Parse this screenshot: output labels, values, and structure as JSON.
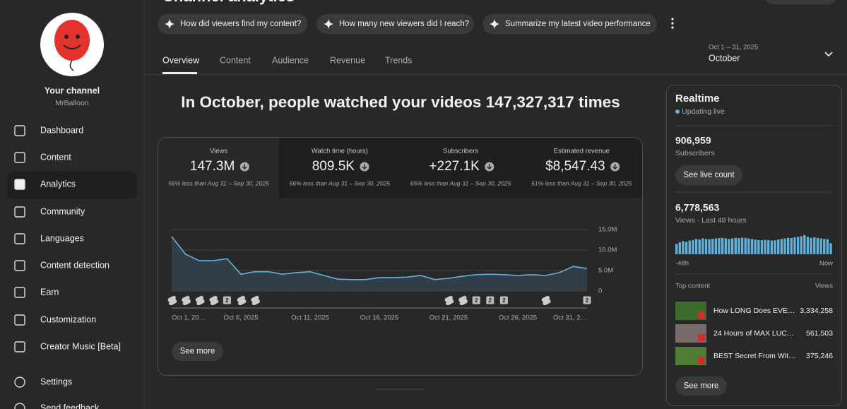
{
  "header": {
    "title": "Channel analytics"
  },
  "sidebar": {
    "channel_label": "Your channel",
    "channel_name": "MrBalloon",
    "nav": [
      "Dashboard",
      "Content",
      "Analytics",
      "Community",
      "Languages",
      "Content detection",
      "Earn",
      "Customization",
      "Creator Music [Beta]"
    ],
    "footer_nav": [
      "Settings",
      "Send feedback"
    ]
  },
  "prompts": [
    "How did viewers find my content?",
    "How many new viewers did I reach?",
    "Summarize my latest video performance"
  ],
  "tabs": [
    "Overview",
    "Content",
    "Audience",
    "Revenue",
    "Trends"
  ],
  "date_range": {
    "range": "Oct 1 – 31, 2025",
    "label": "October"
  },
  "headline": "In October, people watched your videos 147,327,317 times",
  "metrics": [
    {
      "label": "Views",
      "value": "147.3M",
      "comparison": "56% less than Aug 31 – Sep 30, 2025"
    },
    {
      "label": "Watch time (hours)",
      "value": "809.5K",
      "comparison": "56% less than Aug 31 – Sep 30, 2025"
    },
    {
      "label": "Subscribers",
      "value": "+227.1K",
      "comparison": "65% less than Aug 31 – Sep 30, 2025"
    },
    {
      "label": "Estimated revenue",
      "value": "$8,547.43",
      "comparison": "51% less than Aug 31 – Sep 30, 2025"
    }
  ],
  "chart_data": [
    {
      "type": "line",
      "categories": [
        "Oct 1, 20…",
        null,
        null,
        null,
        null,
        "Oct 6, 2025",
        null,
        null,
        null,
        null,
        "Oct 11, 2025",
        null,
        null,
        null,
        null,
        "Oct 16, 2025",
        null,
        null,
        null,
        null,
        "Oct 21, 2025",
        null,
        null,
        null,
        null,
        "Oct 26, 2025",
        null,
        null,
        null,
        null,
        "Oct 31, 2…"
      ],
      "values": [
        13300000,
        9000000,
        7400000,
        7400000,
        7900000,
        4100000,
        4700000,
        4700000,
        4100000,
        4500000,
        4700000,
        3800000,
        2900000,
        2800000,
        2800000,
        3300000,
        3300000,
        3400000,
        3800000,
        2800000,
        3100000,
        3600000,
        4000000,
        4100000,
        4000000,
        3800000,
        4000000,
        3800000,
        4500000,
        6000000,
        5500000
      ],
      "color": "#5fb3de",
      "ylim": [
        0,
        15000000
      ],
      "yticks": [
        0,
        {
          "value": 5000000,
          "label": "5.0M"
        },
        {
          "value": 10000000,
          "label": "10.0M"
        },
        {
          "value": 15000000,
          "label": "15.0M"
        }
      ],
      "grid": true
    },
    {
      "type": "bar",
      "categories": [
        "-48h",
        null,
        null,
        null,
        null,
        null,
        null,
        null,
        null,
        null,
        null,
        null,
        null,
        null,
        null,
        null,
        null,
        null,
        null,
        null,
        null,
        null,
        null,
        null,
        null,
        null,
        null,
        null,
        null,
        null,
        null,
        null,
        null,
        null,
        null,
        null,
        null,
        null,
        null,
        null,
        null,
        null,
        null,
        null,
        null,
        null,
        null,
        "Now"
      ],
      "values": [
        95000,
        110000,
        120000,
        115000,
        125000,
        130000,
        140000,
        135000,
        145000,
        140000,
        138000,
        142000,
        145000,
        148000,
        150000,
        146000,
        140000,
        145000,
        150000,
        148000,
        152000,
        150000,
        145000,
        140000,
        135000,
        130000,
        128000,
        132000,
        130000,
        125000,
        128000,
        135000,
        140000,
        145000,
        150000,
        148000,
        155000,
        160000,
        165000,
        175000,
        160000,
        150000,
        155000,
        150000,
        145000,
        140000,
        138000,
        100000
      ],
      "color": "#5fb3de",
      "ylim": [
        0,
        200000
      ]
    }
  ],
  "video_markers": [
    "2",
    "2",
    "2",
    "2",
    "2"
  ],
  "see_more": "See more",
  "realtime": {
    "title": "Realtime",
    "status": "Updating live",
    "subscribers": {
      "value": "906,959",
      "label": "Subscribers"
    },
    "live_button": "See live count",
    "views": {
      "value": "6,778,563",
      "label": "Views · Last 48 hours"
    },
    "top_content": {
      "title": "Top content",
      "column": "Views",
      "rows": [
        {
          "title": "How LONG Does EVE…",
          "views": "3,334,258"
        },
        {
          "title": "24 Hours of MAX LUC…",
          "views": "561,503"
        },
        {
          "title": "BEST Secret From Wit…",
          "views": "375,246"
        }
      ]
    },
    "see_more": "See more"
  }
}
